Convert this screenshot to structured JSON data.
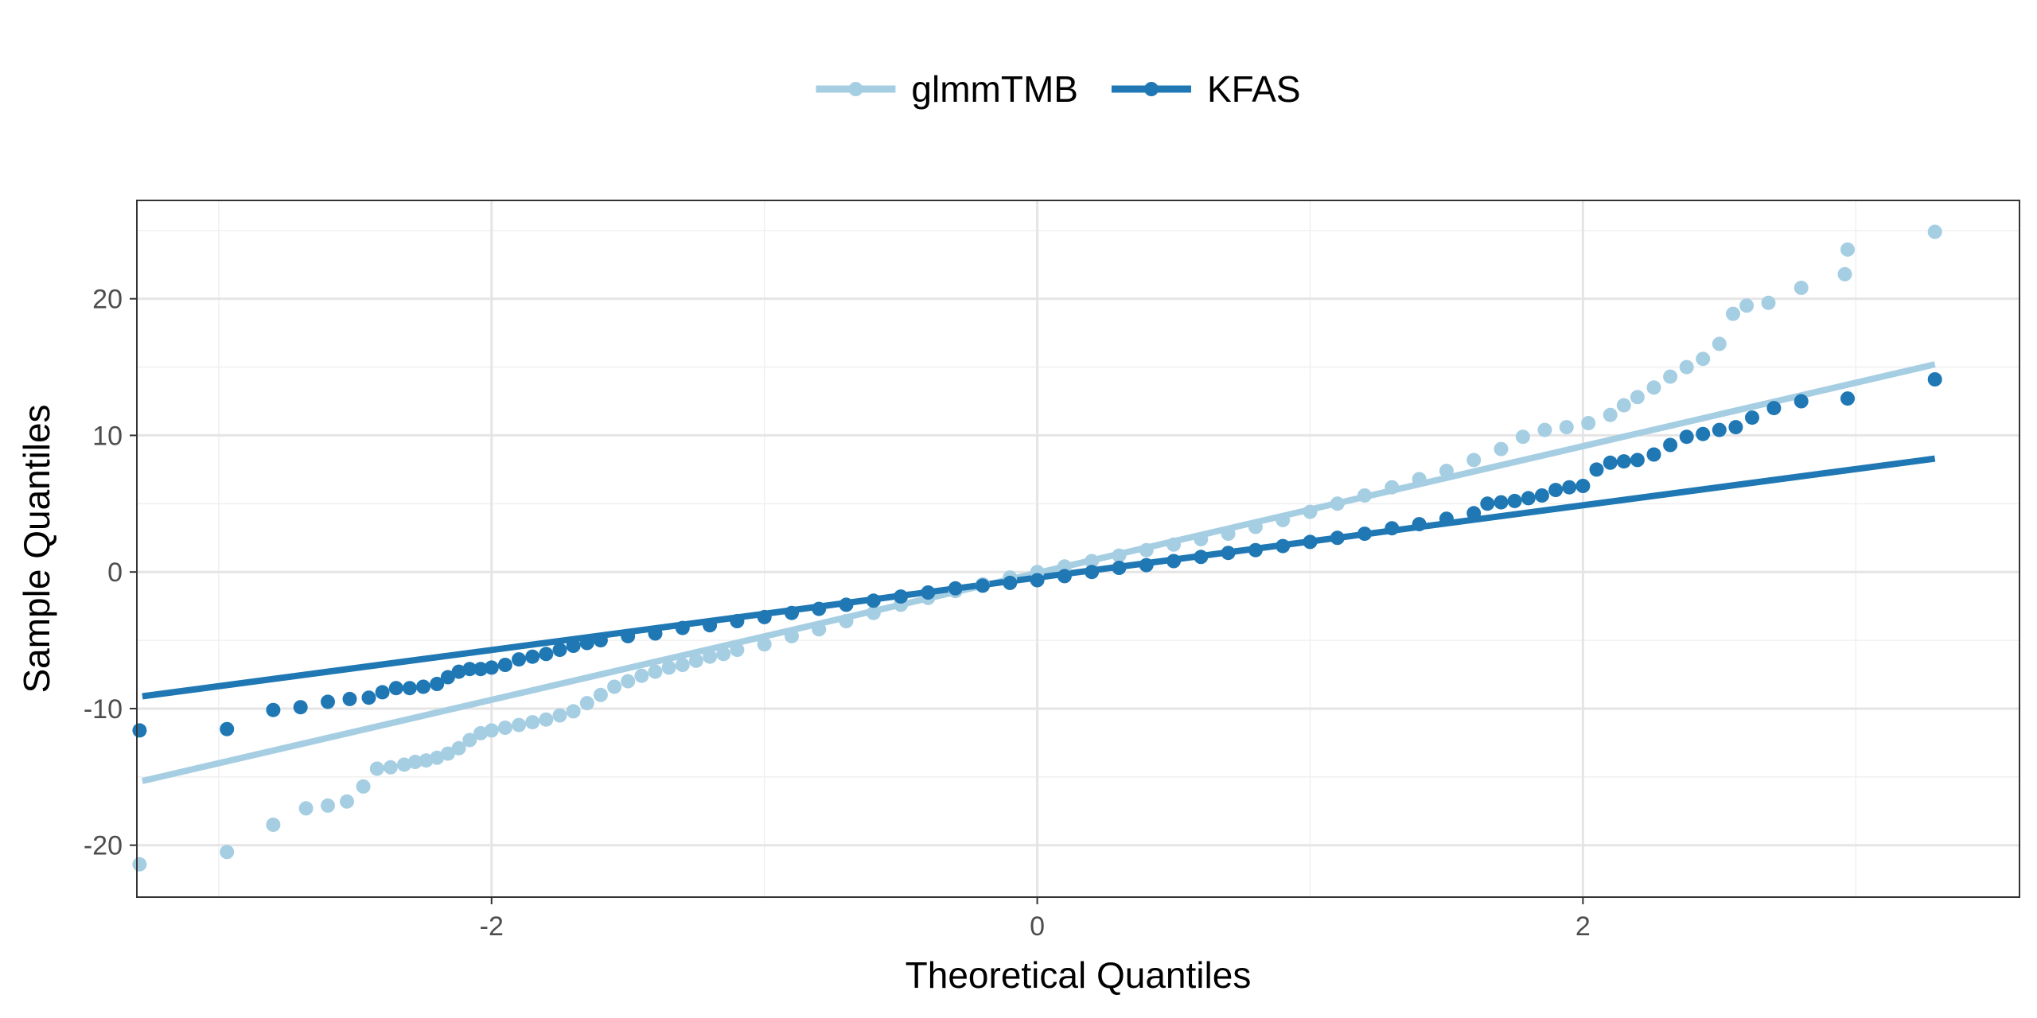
{
  "chart_data": {
    "type": "scatter",
    "subtype": "qq-plot",
    "xlabel": "Theoretical Quantiles",
    "ylabel": "Sample Quantiles",
    "xlim": [
      -3.3,
      3.6
    ],
    "ylim": [
      -23.8,
      27.2
    ],
    "x_ticks": [
      -2,
      0,
      2
    ],
    "x_tick_labels": [
      "-2",
      "0",
      "2"
    ],
    "y_ticks": [
      -20,
      -10,
      0,
      10,
      20
    ],
    "y_tick_labels": [
      "-20",
      "-10",
      "0",
      "10",
      "20"
    ],
    "grid": true,
    "legend_position": "top",
    "series": [
      {
        "name": "glmmTMB",
        "color": "#a6cee3",
        "reference_line": {
          "x": [
            -3.28,
            3.29
          ],
          "y": [
            -15.3,
            15.2
          ]
        },
        "points": [
          [
            -3.29,
            -21.4
          ],
          [
            -2.97,
            -20.5
          ],
          [
            -2.8,
            -18.5
          ],
          [
            -2.68,
            -17.3
          ],
          [
            -2.6,
            -17.1
          ],
          [
            -2.53,
            -16.8
          ],
          [
            -2.47,
            -15.7
          ],
          [
            -2.42,
            -14.4
          ],
          [
            -2.37,
            -14.3
          ],
          [
            -2.32,
            -14.1
          ],
          [
            -2.28,
            -13.9
          ],
          [
            -2.24,
            -13.8
          ],
          [
            -2.2,
            -13.6
          ],
          [
            -2.16,
            -13.3
          ],
          [
            -2.12,
            -12.9
          ],
          [
            -2.08,
            -12.3
          ],
          [
            -2.04,
            -11.8
          ],
          [
            -2.0,
            -11.6
          ],
          [
            -1.95,
            -11.4
          ],
          [
            -1.9,
            -11.2
          ],
          [
            -1.85,
            -11.0
          ],
          [
            -1.8,
            -10.8
          ],
          [
            -1.75,
            -10.5
          ],
          [
            -1.7,
            -10.2
          ],
          [
            -1.65,
            -9.6
          ],
          [
            -1.6,
            -9.0
          ],
          [
            -1.55,
            -8.4
          ],
          [
            -1.5,
            -8.0
          ],
          [
            -1.45,
            -7.6
          ],
          [
            -1.4,
            -7.3
          ],
          [
            -1.35,
            -7.0
          ],
          [
            -1.3,
            -6.8
          ],
          [
            -1.25,
            -6.5
          ],
          [
            -1.2,
            -6.2
          ],
          [
            -1.15,
            -6.0
          ],
          [
            -1.1,
            -5.7
          ],
          [
            -1.0,
            -5.3
          ],
          [
            -0.9,
            -4.7
          ],
          [
            -0.8,
            -4.2
          ],
          [
            -0.7,
            -3.6
          ],
          [
            -0.6,
            -3.0
          ],
          [
            -0.5,
            -2.4
          ],
          [
            -0.4,
            -1.9
          ],
          [
            -0.3,
            -1.4
          ],
          [
            -0.2,
            -0.9
          ],
          [
            -0.1,
            -0.4
          ],
          [
            0.0,
            0.0
          ],
          [
            0.1,
            0.4
          ],
          [
            0.2,
            0.8
          ],
          [
            0.3,
            1.2
          ],
          [
            0.4,
            1.6
          ],
          [
            0.5,
            2.0
          ],
          [
            0.6,
            2.4
          ],
          [
            0.7,
            2.8
          ],
          [
            0.8,
            3.3
          ],
          [
            0.9,
            3.8
          ],
          [
            1.0,
            4.4
          ],
          [
            1.1,
            5.0
          ],
          [
            1.2,
            5.6
          ],
          [
            1.3,
            6.2
          ],
          [
            1.4,
            6.8
          ],
          [
            1.5,
            7.4
          ],
          [
            1.6,
            8.2
          ],
          [
            1.7,
            9.0
          ],
          [
            1.78,
            9.9
          ],
          [
            1.86,
            10.4
          ],
          [
            1.94,
            10.6
          ],
          [
            2.02,
            10.9
          ],
          [
            2.1,
            11.5
          ],
          [
            2.15,
            12.2
          ],
          [
            2.2,
            12.8
          ],
          [
            2.26,
            13.5
          ],
          [
            2.32,
            14.3
          ],
          [
            2.38,
            15.0
          ],
          [
            2.44,
            15.6
          ],
          [
            2.5,
            16.7
          ],
          [
            2.55,
            18.9
          ],
          [
            2.6,
            19.5
          ],
          [
            2.68,
            19.7
          ],
          [
            2.8,
            20.8
          ],
          [
            2.96,
            21.8
          ],
          [
            2.97,
            23.6
          ],
          [
            3.29,
            24.9
          ]
        ]
      },
      {
        "name": "KFAS",
        "color": "#1f78b4",
        "reference_line": {
          "x": [
            -3.28,
            3.29
          ],
          "y": [
            -9.1,
            8.3
          ]
        },
        "points": [
          [
            -3.29,
            -11.6
          ],
          [
            -2.97,
            -11.5
          ],
          [
            -2.8,
            -10.1
          ],
          [
            -2.7,
            -9.9
          ],
          [
            -2.6,
            -9.5
          ],
          [
            -2.52,
            -9.3
          ],
          [
            -2.45,
            -9.2
          ],
          [
            -2.4,
            -8.8
          ],
          [
            -2.35,
            -8.5
          ],
          [
            -2.3,
            -8.5
          ],
          [
            -2.25,
            -8.4
          ],
          [
            -2.2,
            -8.2
          ],
          [
            -2.16,
            -7.7
          ],
          [
            -2.12,
            -7.3
          ],
          [
            -2.08,
            -7.1
          ],
          [
            -2.04,
            -7.1
          ],
          [
            -2.0,
            -7.0
          ],
          [
            -1.95,
            -6.8
          ],
          [
            -1.9,
            -6.4
          ],
          [
            -1.85,
            -6.2
          ],
          [
            -1.8,
            -6.0
          ],
          [
            -1.75,
            -5.7
          ],
          [
            -1.7,
            -5.4
          ],
          [
            -1.65,
            -5.2
          ],
          [
            -1.6,
            -5.0
          ],
          [
            -1.5,
            -4.7
          ],
          [
            -1.4,
            -4.5
          ],
          [
            -1.3,
            -4.1
          ],
          [
            -1.2,
            -3.9
          ],
          [
            -1.1,
            -3.6
          ],
          [
            -1.0,
            -3.3
          ],
          [
            -0.9,
            -3.0
          ],
          [
            -0.8,
            -2.7
          ],
          [
            -0.7,
            -2.4
          ],
          [
            -0.6,
            -2.1
          ],
          [
            -0.5,
            -1.8
          ],
          [
            -0.4,
            -1.5
          ],
          [
            -0.3,
            -1.2
          ],
          [
            -0.2,
            -1.0
          ],
          [
            -0.1,
            -0.8
          ],
          [
            0.0,
            -0.6
          ],
          [
            0.1,
            -0.3
          ],
          [
            0.2,
            0.0
          ],
          [
            0.3,
            0.3
          ],
          [
            0.4,
            0.5
          ],
          [
            0.5,
            0.8
          ],
          [
            0.6,
            1.1
          ],
          [
            0.7,
            1.4
          ],
          [
            0.8,
            1.6
          ],
          [
            0.9,
            1.9
          ],
          [
            1.0,
            2.2
          ],
          [
            1.1,
            2.5
          ],
          [
            1.2,
            2.8
          ],
          [
            1.3,
            3.2
          ],
          [
            1.4,
            3.5
          ],
          [
            1.5,
            3.9
          ],
          [
            1.6,
            4.3
          ],
          [
            1.65,
            5.0
          ],
          [
            1.7,
            5.1
          ],
          [
            1.75,
            5.2
          ],
          [
            1.8,
            5.4
          ],
          [
            1.85,
            5.6
          ],
          [
            1.9,
            6.0
          ],
          [
            1.95,
            6.2
          ],
          [
            2.0,
            6.3
          ],
          [
            2.05,
            7.5
          ],
          [
            2.1,
            8.0
          ],
          [
            2.15,
            8.1
          ],
          [
            2.2,
            8.2
          ],
          [
            2.26,
            8.6
          ],
          [
            2.32,
            9.3
          ],
          [
            2.38,
            9.9
          ],
          [
            2.44,
            10.1
          ],
          [
            2.5,
            10.4
          ],
          [
            2.56,
            10.6
          ],
          [
            2.62,
            11.3
          ],
          [
            2.7,
            12.0
          ],
          [
            2.8,
            12.5
          ],
          [
            2.97,
            12.7
          ],
          [
            3.29,
            14.1
          ]
        ]
      }
    ]
  }
}
